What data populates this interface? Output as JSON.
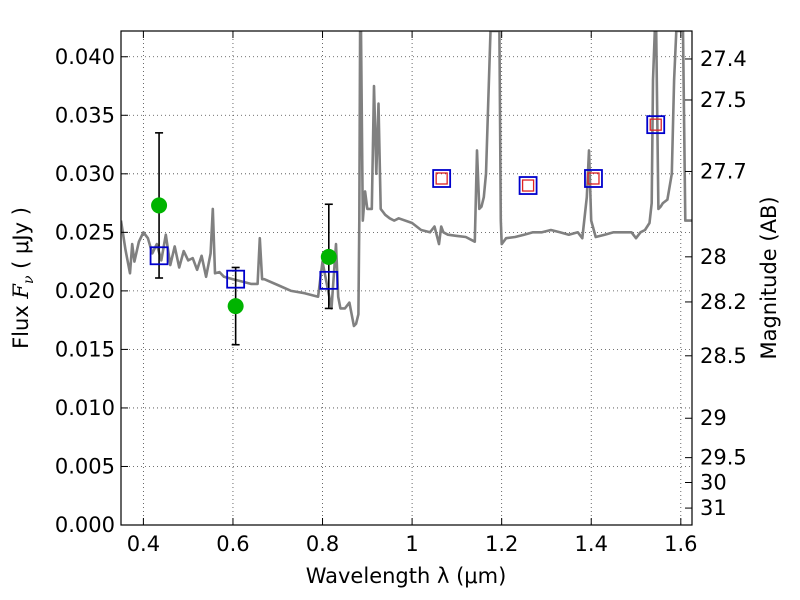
{
  "chart_data": {
    "type": "scatter",
    "xlabel": "Wavelength  λ (μm)",
    "ylabel_left_parts": {
      "prefix": "Flux  ",
      "symbol": "F",
      "subscript": "ν",
      "suffix": "  ( μJy )"
    },
    "ylabel_right": "Magnitude (AB)",
    "xlim": [
      0.35,
      1.625
    ],
    "ylim": [
      0.0,
      0.0422
    ],
    "grid": true,
    "x_ticks": [
      {
        "value": 0.4,
        "label": "0.4"
      },
      {
        "value": 0.6,
        "label": "0.6"
      },
      {
        "value": 0.8,
        "label": "0.8"
      },
      {
        "value": 1.0,
        "label": "1"
      },
      {
        "value": 1.2,
        "label": "1.2"
      },
      {
        "value": 1.4,
        "label": "1.4"
      },
      {
        "value": 1.6,
        "label": "1.6"
      }
    ],
    "y_ticks_left": [
      {
        "value": 0.0,
        "label": "0.000"
      },
      {
        "value": 0.005,
        "label": "0.005"
      },
      {
        "value": 0.01,
        "label": "0.010"
      },
      {
        "value": 0.015,
        "label": "0.015"
      },
      {
        "value": 0.02,
        "label": "0.020"
      },
      {
        "value": 0.025,
        "label": "0.025"
      },
      {
        "value": 0.03,
        "label": "0.030"
      },
      {
        "value": 0.035,
        "label": "0.035"
      },
      {
        "value": 0.04,
        "label": "0.040"
      }
    ],
    "y_ticks_right": [
      {
        "mag": 27.4,
        "label": "27.4"
      },
      {
        "mag": 27.5,
        "label": "27.5"
      },
      {
        "mag": 27.7,
        "label": "27.7"
      },
      {
        "mag": 28.0,
        "label": "28"
      },
      {
        "mag": 28.2,
        "label": "28.2"
      },
      {
        "mag": 28.5,
        "label": "28.5"
      },
      {
        "mag": 29.0,
        "label": "29"
      },
      {
        "mag": 29.5,
        "label": "29.5"
      },
      {
        "mag": 30.0,
        "label": "30"
      },
      {
        "mag": 31.0,
        "label": "31"
      }
    ],
    "series": [
      {
        "name": "observed",
        "kind": "points_with_errorbars",
        "color": "#00b400",
        "errorbar_color": "#000000",
        "points": [
          {
            "x": 0.435,
            "y": 0.0273,
            "ylo": 0.0211,
            "yhi": 0.0335
          },
          {
            "x": 0.606,
            "y": 0.0187,
            "ylo": 0.0154,
            "yhi": 0.022
          },
          {
            "x": 0.814,
            "y": 0.0229,
            "ylo": 0.0185,
            "yhi": 0.0274
          }
        ]
      },
      {
        "name": "model_synthetic",
        "kind": "open_squares",
        "color": "#0000cc",
        "points": [
          {
            "x": 0.435,
            "y": 0.023
          },
          {
            "x": 0.606,
            "y": 0.021
          },
          {
            "x": 0.814,
            "y": 0.0209
          },
          {
            "x": 1.066,
            "y": 0.0296
          },
          {
            "x": 1.259,
            "y": 0.029
          },
          {
            "x": 1.405,
            "y": 0.0296
          },
          {
            "x": 1.544,
            "y": 0.0342
          }
        ]
      },
      {
        "name": "predicted_nir",
        "kind": "open_squares_small",
        "color": "#dd2222",
        "points": [
          {
            "x": 1.066,
            "y": 0.0296
          },
          {
            "x": 1.259,
            "y": 0.029
          },
          {
            "x": 1.405,
            "y": 0.0296
          },
          {
            "x": 1.544,
            "y": 0.0342
          }
        ]
      },
      {
        "name": "sed_model",
        "kind": "line",
        "color": "#808080",
        "x": [
          0.35,
          0.36,
          0.37,
          0.375,
          0.38,
          0.39,
          0.4,
          0.41,
          0.42,
          0.43,
          0.44,
          0.45,
          0.46,
          0.47,
          0.48,
          0.49,
          0.5,
          0.51,
          0.52,
          0.53,
          0.54,
          0.55,
          0.555,
          0.56,
          0.57,
          0.58,
          0.6,
          0.62,
          0.64,
          0.655,
          0.66,
          0.665,
          0.67,
          0.7,
          0.73,
          0.76,
          0.79,
          0.8,
          0.82,
          0.83,
          0.835,
          0.84,
          0.85,
          0.86,
          0.87,
          0.875,
          0.88,
          0.882,
          0.884,
          0.886,
          0.89,
          0.895,
          0.9,
          0.905,
          0.91,
          0.915,
          0.92,
          0.925,
          0.93,
          0.94,
          0.95,
          0.96,
          0.97,
          1.0,
          1.02,
          1.04,
          1.05,
          1.06,
          1.065,
          1.07,
          1.08,
          1.1,
          1.12,
          1.14,
          1.145,
          1.15,
          1.155,
          1.16,
          1.165,
          1.17,
          1.175,
          1.18,
          1.182,
          1.195,
          1.198,
          1.2,
          1.21,
          1.23,
          1.25,
          1.27,
          1.29,
          1.31,
          1.33,
          1.35,
          1.37,
          1.38,
          1.39,
          1.395,
          1.4,
          1.41,
          1.43,
          1.45,
          1.47,
          1.49,
          1.5,
          1.51,
          1.52,
          1.53,
          1.535,
          1.538,
          1.542,
          1.545,
          1.55,
          1.555,
          1.56,
          1.57,
          1.58,
          1.585,
          1.59,
          1.595,
          1.6,
          1.605,
          1.61,
          1.625
        ],
        "y": [
          0.026,
          0.0235,
          0.0215,
          0.024,
          0.0225,
          0.0242,
          0.025,
          0.0245,
          0.0232,
          0.024,
          0.0226,
          0.0248,
          0.0222,
          0.0238,
          0.022,
          0.0234,
          0.0226,
          0.0228,
          0.0218,
          0.023,
          0.0212,
          0.0232,
          0.027,
          0.0215,
          0.0216,
          0.0212,
          0.021,
          0.0208,
          0.0206,
          0.0206,
          0.0245,
          0.021,
          0.021,
          0.0205,
          0.02,
          0.0198,
          0.0195,
          0.0225,
          0.0185,
          0.024,
          0.0195,
          0.0185,
          0.0185,
          0.019,
          0.017,
          0.0172,
          0.018,
          0.026,
          0.0422,
          0.0422,
          0.026,
          0.0285,
          0.027,
          0.027,
          0.027,
          0.0375,
          0.03,
          0.036,
          0.027,
          0.0265,
          0.0262,
          0.026,
          0.0262,
          0.0258,
          0.0252,
          0.025,
          0.0255,
          0.024,
          0.0255,
          0.025,
          0.0248,
          0.0247,
          0.0246,
          0.0242,
          0.032,
          0.027,
          0.0272,
          0.028,
          0.03,
          0.036,
          0.0422,
          0.0422,
          0.0422,
          0.0422,
          0.026,
          0.024,
          0.0245,
          0.0246,
          0.0248,
          0.025,
          0.025,
          0.0252,
          0.025,
          0.0248,
          0.025,
          0.0245,
          0.028,
          0.032,
          0.026,
          0.0246,
          0.0248,
          0.025,
          0.025,
          0.025,
          0.0245,
          0.025,
          0.0252,
          0.0258,
          0.0275,
          0.038,
          0.0422,
          0.0422,
          0.027,
          0.0272,
          0.0275,
          0.0278,
          0.03,
          0.038,
          0.0422,
          0.0422,
          0.0422,
          0.0422,
          0.026,
          0.026
        ]
      }
    ]
  }
}
